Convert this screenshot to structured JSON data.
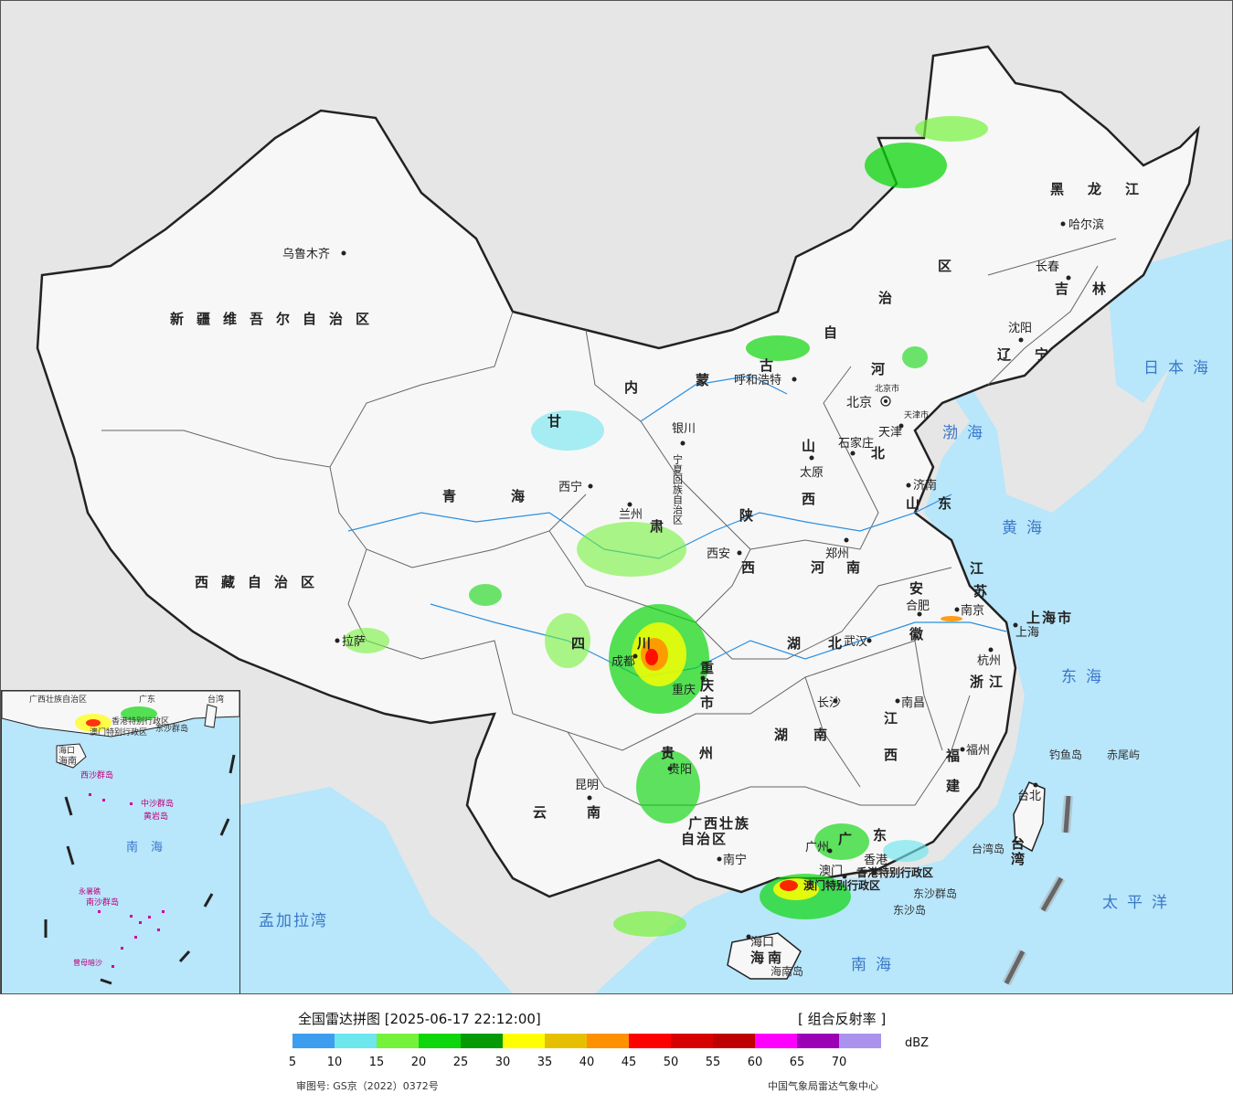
{
  "legend": {
    "title": "全国雷达拼图 [2025-06-17 22:12:00]",
    "product": "[ 组合反射率 ]",
    "unit": "dBZ",
    "colors": [
      "#3d9ef0",
      "#6ee6ee",
      "#74f23a",
      "#0dd60d",
      "#079a07",
      "#ffff00",
      "#e6c000",
      "#ff9100",
      "#ff0000",
      "#d70000",
      "#be0000",
      "#ff00ff",
      "#9b00b4",
      "#ac92ef"
    ],
    "ticks": [
      "5",
      "10",
      "15",
      "20",
      "25",
      "30",
      "35",
      "40",
      "45",
      "50",
      "55",
      "60",
      "65",
      "70"
    ]
  },
  "footer": {
    "approval": "审图号: GS京（2022）0372号",
    "credit": "中国气象局雷达气象中心"
  },
  "map": {
    "seas": {
      "japan_sea": "日本海",
      "bohai": "渤海",
      "yellow_sea": "黄海",
      "east_sea": "东海",
      "pacific": "太平洋",
      "south_sea": "南海",
      "bay_of_bengal": "孟加拉湾"
    },
    "provinces": {
      "xinjiang": "新疆维吾尔自治区",
      "xizang": "西藏自治区",
      "qinghai": "青海",
      "gansu": "甘",
      "gansu_su": "肃",
      "neimenggu_nei": "内",
      "neimenggu_meng": "蒙",
      "neimenggu_gu": "古",
      "neimenggu_zi": "自",
      "neimenggu_zhi": "治",
      "neimenggu_qu": "区",
      "heilongjiang": "黑龙江",
      "jilin": "吉林",
      "liaoning": "辽宁",
      "hebei_he": "河",
      "hebei_bei": "北",
      "shanxi_shan": "山",
      "shanxi_xi": "西",
      "shandong": "山东",
      "shaanxi_shan": "陕",
      "shaanxi_xi": "西",
      "henan": "河南",
      "jiangsu_jiang": "江",
      "jiangsu_su": "苏",
      "anhui_an": "安",
      "anhui_hui": "徽",
      "hubei": "湖北",
      "zhejiang": "浙江",
      "sichuan_si": "四",
      "sichuan_chuan": "川",
      "chongqing_shi": "重庆市",
      "hunan": "湖南",
      "jiangxi_jiang": "江",
      "jiangxi_xi": "西",
      "fujian_fu": "福",
      "fujian_jian": "建",
      "guizhou_gui": "贵",
      "guizhou_zhou": "州",
      "yunnan": "云南",
      "guangxi": "广西壮族",
      "guangxi2": "自治区",
      "guangdong_guang": "广",
      "guangdong_dong": "东",
      "hainan": "海南",
      "taiwan": "台湾",
      "shanghai": "上海市",
      "ningxia": "宁夏回族自治区",
      "xianggang": "香港特别行政区",
      "aomen": "澳门特别行政区"
    },
    "cities": [
      {
        "name": "乌鲁木齐"
      },
      {
        "name": "拉萨"
      },
      {
        "name": "西宁"
      },
      {
        "name": "兰州"
      },
      {
        "name": "银川"
      },
      {
        "name": "呼和浩特"
      },
      {
        "name": "北京"
      },
      {
        "name": "北京市"
      },
      {
        "name": "天津"
      },
      {
        "name": "天津市"
      },
      {
        "name": "石家庄"
      },
      {
        "name": "太原"
      },
      {
        "name": "济南"
      },
      {
        "name": "西安"
      },
      {
        "name": "郑州"
      },
      {
        "name": "合肥"
      },
      {
        "name": "南京"
      },
      {
        "name": "上海"
      },
      {
        "name": "杭州"
      },
      {
        "name": "武汉"
      },
      {
        "name": "成都"
      },
      {
        "name": "重庆"
      },
      {
        "name": "长沙"
      },
      {
        "name": "南昌"
      },
      {
        "name": "福州"
      },
      {
        "name": "贵阳"
      },
      {
        "name": "昆明"
      },
      {
        "name": "南宁"
      },
      {
        "name": "广州"
      },
      {
        "name": "香港"
      },
      {
        "name": "澳门"
      },
      {
        "name": "海口"
      },
      {
        "name": "台北"
      },
      {
        "name": "沈阳"
      },
      {
        "name": "长春"
      },
      {
        "name": "哈尔滨"
      }
    ],
    "islands": {
      "diaoyu": "钓鱼岛",
      "chiwei": "赤尾屿",
      "dongsha_islands": "东沙群岛",
      "dongsha_island": "东沙岛",
      "hainan_island": "海南岛",
      "taiwan_island": "台湾岛"
    }
  },
  "inset": {
    "labels": {
      "guangxi": "广西壮族自治区",
      "guangdong": "广东",
      "xianggang": "香港特别行政区",
      "aomen": "澳门特别行政区",
      "taiwan": "台湾",
      "dongsha": "东沙群岛",
      "haikou": "海口",
      "hainan": "海南",
      "xisha": "西沙群岛",
      "zhongsha": "中沙群岛",
      "huangyan": "黄岩岛",
      "nansha": "南沙群岛",
      "south_sea": "南海",
      "yongshu": "永暑礁",
      "zengmu": "曾母暗沙"
    }
  }
}
